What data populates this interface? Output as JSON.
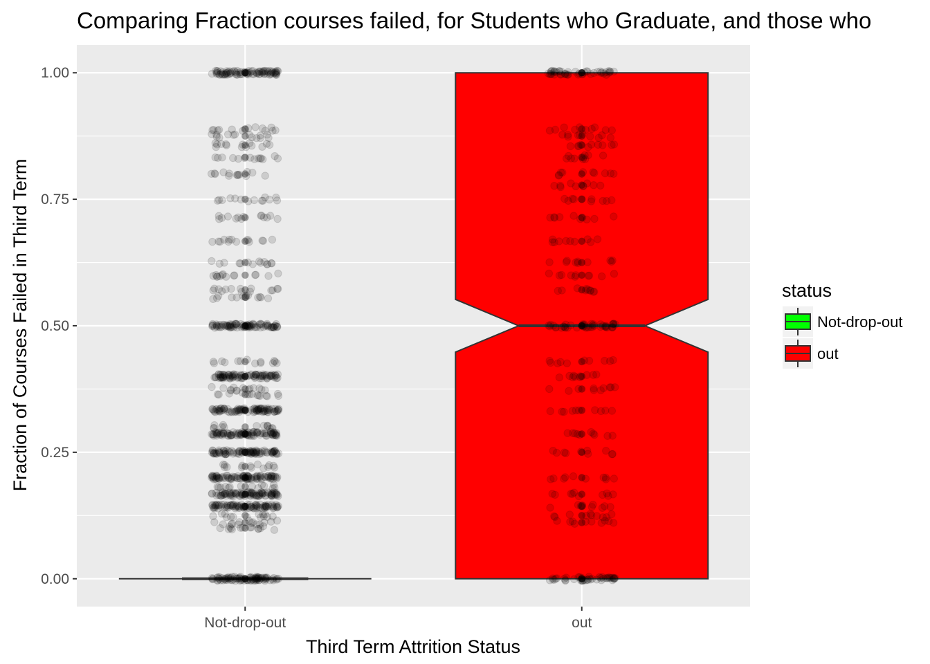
{
  "chart_data": {
    "type": "boxplot",
    "title": "Comparing Fraction courses failed, for Students who Graduate, and those who",
    "xlabel": "Third Term Attrition Status",
    "ylabel": "Fraction of Courses Failed in Third Term",
    "ylim": [
      -0.055,
      1.055
    ],
    "yticks": [
      0.0,
      0.25,
      0.5,
      0.75,
      1.0
    ],
    "ytick_labels": [
      "0.00",
      "0.25",
      "0.50",
      "0.75",
      "1.00"
    ],
    "categories": [
      "Not-drop-out",
      "out"
    ],
    "notched": true,
    "grid": true,
    "legend": {
      "title": "status",
      "position": "right",
      "entries": [
        "Not-drop-out",
        "out"
      ],
      "colors": [
        "#00ff00",
        "#ff0000"
      ]
    },
    "boxes": [
      {
        "name": "Not-drop-out",
        "fill": "#00ff00",
        "min": 0,
        "q1": 0,
        "median": 0,
        "q3": 0,
        "max": 0,
        "notch_low": 0,
        "notch_high": 0
      },
      {
        "name": "out",
        "fill": "#ff0000",
        "min": 0,
        "q1": 0,
        "median": 0.5,
        "q3": 1.0,
        "max": 1.0,
        "notch_low": 0.448,
        "notch_high": 0.552
      }
    ],
    "points": [
      {
        "category": "Not-drop-out",
        "y_levels": [
          0,
          0.1,
          0.111,
          0.125,
          0.143,
          0.167,
          0.182,
          0.2,
          0.222,
          0.25,
          0.286,
          0.3,
          0.333,
          0.364,
          0.375,
          0.4,
          0.429,
          0.5,
          0.556,
          0.571,
          0.6,
          0.625,
          0.667,
          0.714,
          0.75,
          0.8,
          0.833,
          0.857,
          0.875,
          0.889,
          1.0
        ],
        "dense_levels": [
          0,
          0.143,
          0.167,
          0.2,
          0.25,
          0.286,
          0.333,
          0.4,
          0.5,
          1.0
        ]
      },
      {
        "category": "out",
        "y_levels": [
          0,
          0.111,
          0.125,
          0.143,
          0.167,
          0.2,
          0.25,
          0.286,
          0.333,
          0.375,
          0.4,
          0.429,
          0.5,
          0.571,
          0.6,
          0.625,
          0.667,
          0.714,
          0.75,
          0.778,
          0.8,
          0.833,
          0.857,
          0.875,
          0.889,
          1.0
        ],
        "dense_levels": [
          0,
          0.5,
          1.0
        ]
      }
    ]
  }
}
